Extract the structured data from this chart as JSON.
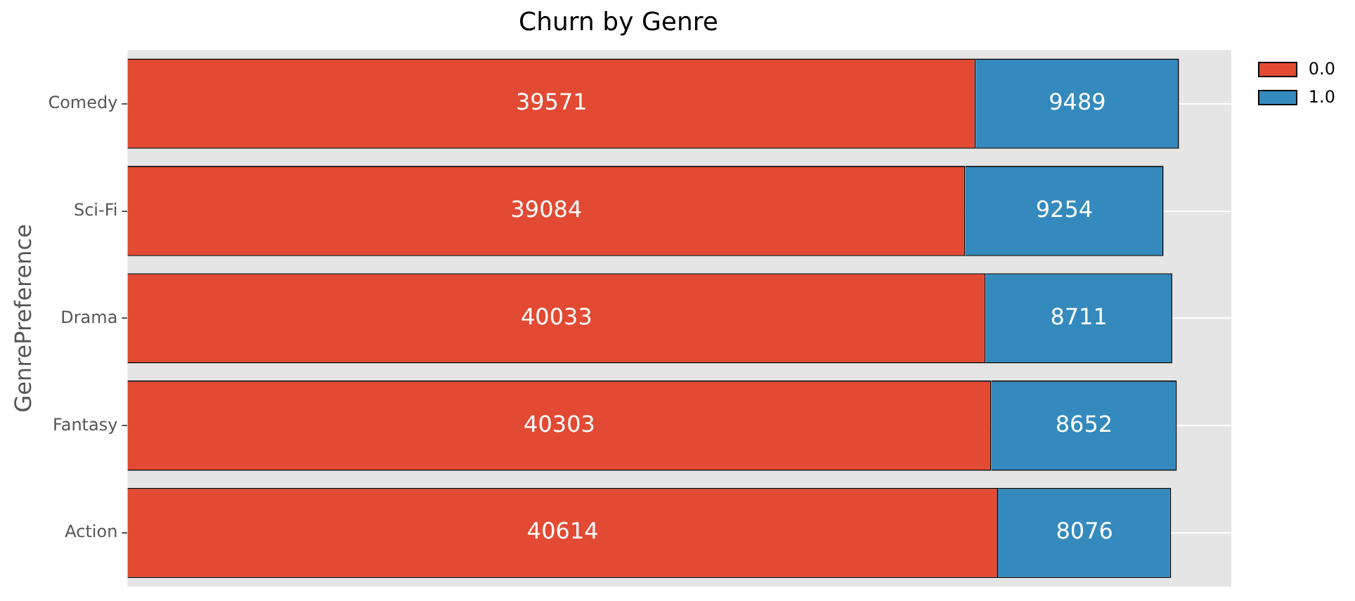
{
  "chart_data": {
    "type": "bar",
    "orientation": "horizontal",
    "stacked": true,
    "title": "Churn by Genre",
    "ylabel": "GenrePreference",
    "categories": [
      "Comedy",
      "Sci-Fi",
      "Drama",
      "Fantasy",
      "Action"
    ],
    "series": [
      {
        "name": "0.0",
        "color": "#e24a33",
        "values": [
          39571,
          39084,
          40033,
          40303,
          40614
        ]
      },
      {
        "name": "1.0",
        "color": "#348abd",
        "values": [
          9489,
          9254,
          8711,
          8652,
          8076
        ]
      }
    ],
    "xlim": [
      0,
      51500
    ],
    "data_labels": true,
    "grid": "y",
    "legend": "top right",
    "tick_labels": "y"
  }
}
